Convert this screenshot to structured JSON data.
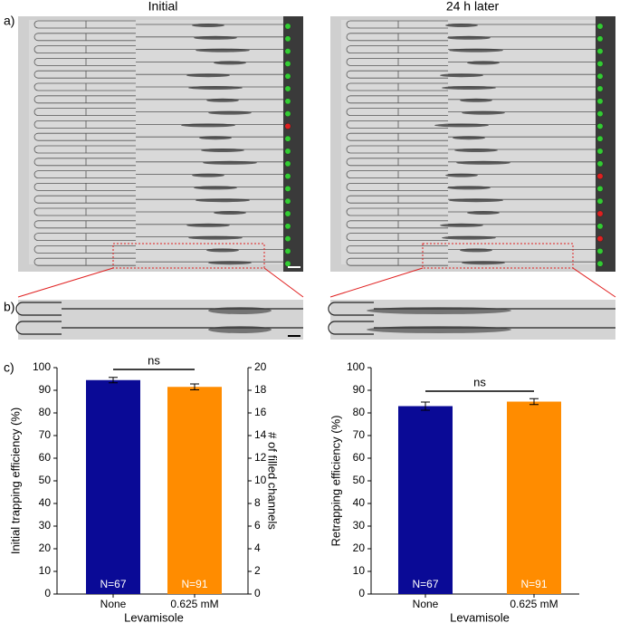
{
  "figure": {
    "panel_labels": [
      "a)",
      "b)",
      "c)"
    ],
    "image_titles": [
      "Initial",
      "24 h later"
    ]
  },
  "chart_data": [
    {
      "type": "bar",
      "categories": [
        "None",
        "0.625 mM"
      ],
      "values": [
        94.5,
        91.5
      ],
      "errors": [
        1.2,
        1.3
      ],
      "colors": [
        "#0a0a96",
        "#ff8c00"
      ],
      "bar_labels": [
        "N=67",
        "N=91"
      ],
      "xlabel": "Levamisole",
      "ylabel": "Initial trapping efficiency (%)",
      "ylim": [
        0,
        100
      ],
      "yticks": [
        0,
        10,
        20,
        30,
        40,
        50,
        60,
        70,
        80,
        90,
        100
      ],
      "y2label": "# of filled channels",
      "y2lim": [
        0,
        20
      ],
      "y2ticks": [
        0,
        2,
        4,
        6,
        8,
        10,
        12,
        14,
        16,
        18,
        20
      ],
      "annotation": "ns"
    },
    {
      "type": "bar",
      "categories": [
        "None",
        "0.625 mM"
      ],
      "values": [
        83,
        85
      ],
      "errors": [
        1.8,
        1.3
      ],
      "colors": [
        "#0a0a96",
        "#ff8c00"
      ],
      "bar_labels": [
        "N=67",
        "N=91"
      ],
      "xlabel": "Levamisole",
      "ylabel": "Retrapping efficiency (%)",
      "ylim": [
        0,
        100
      ],
      "yticks": [
        0,
        10,
        20,
        30,
        40,
        50,
        60,
        70,
        80,
        90,
        100
      ],
      "annotation": "ns"
    }
  ]
}
